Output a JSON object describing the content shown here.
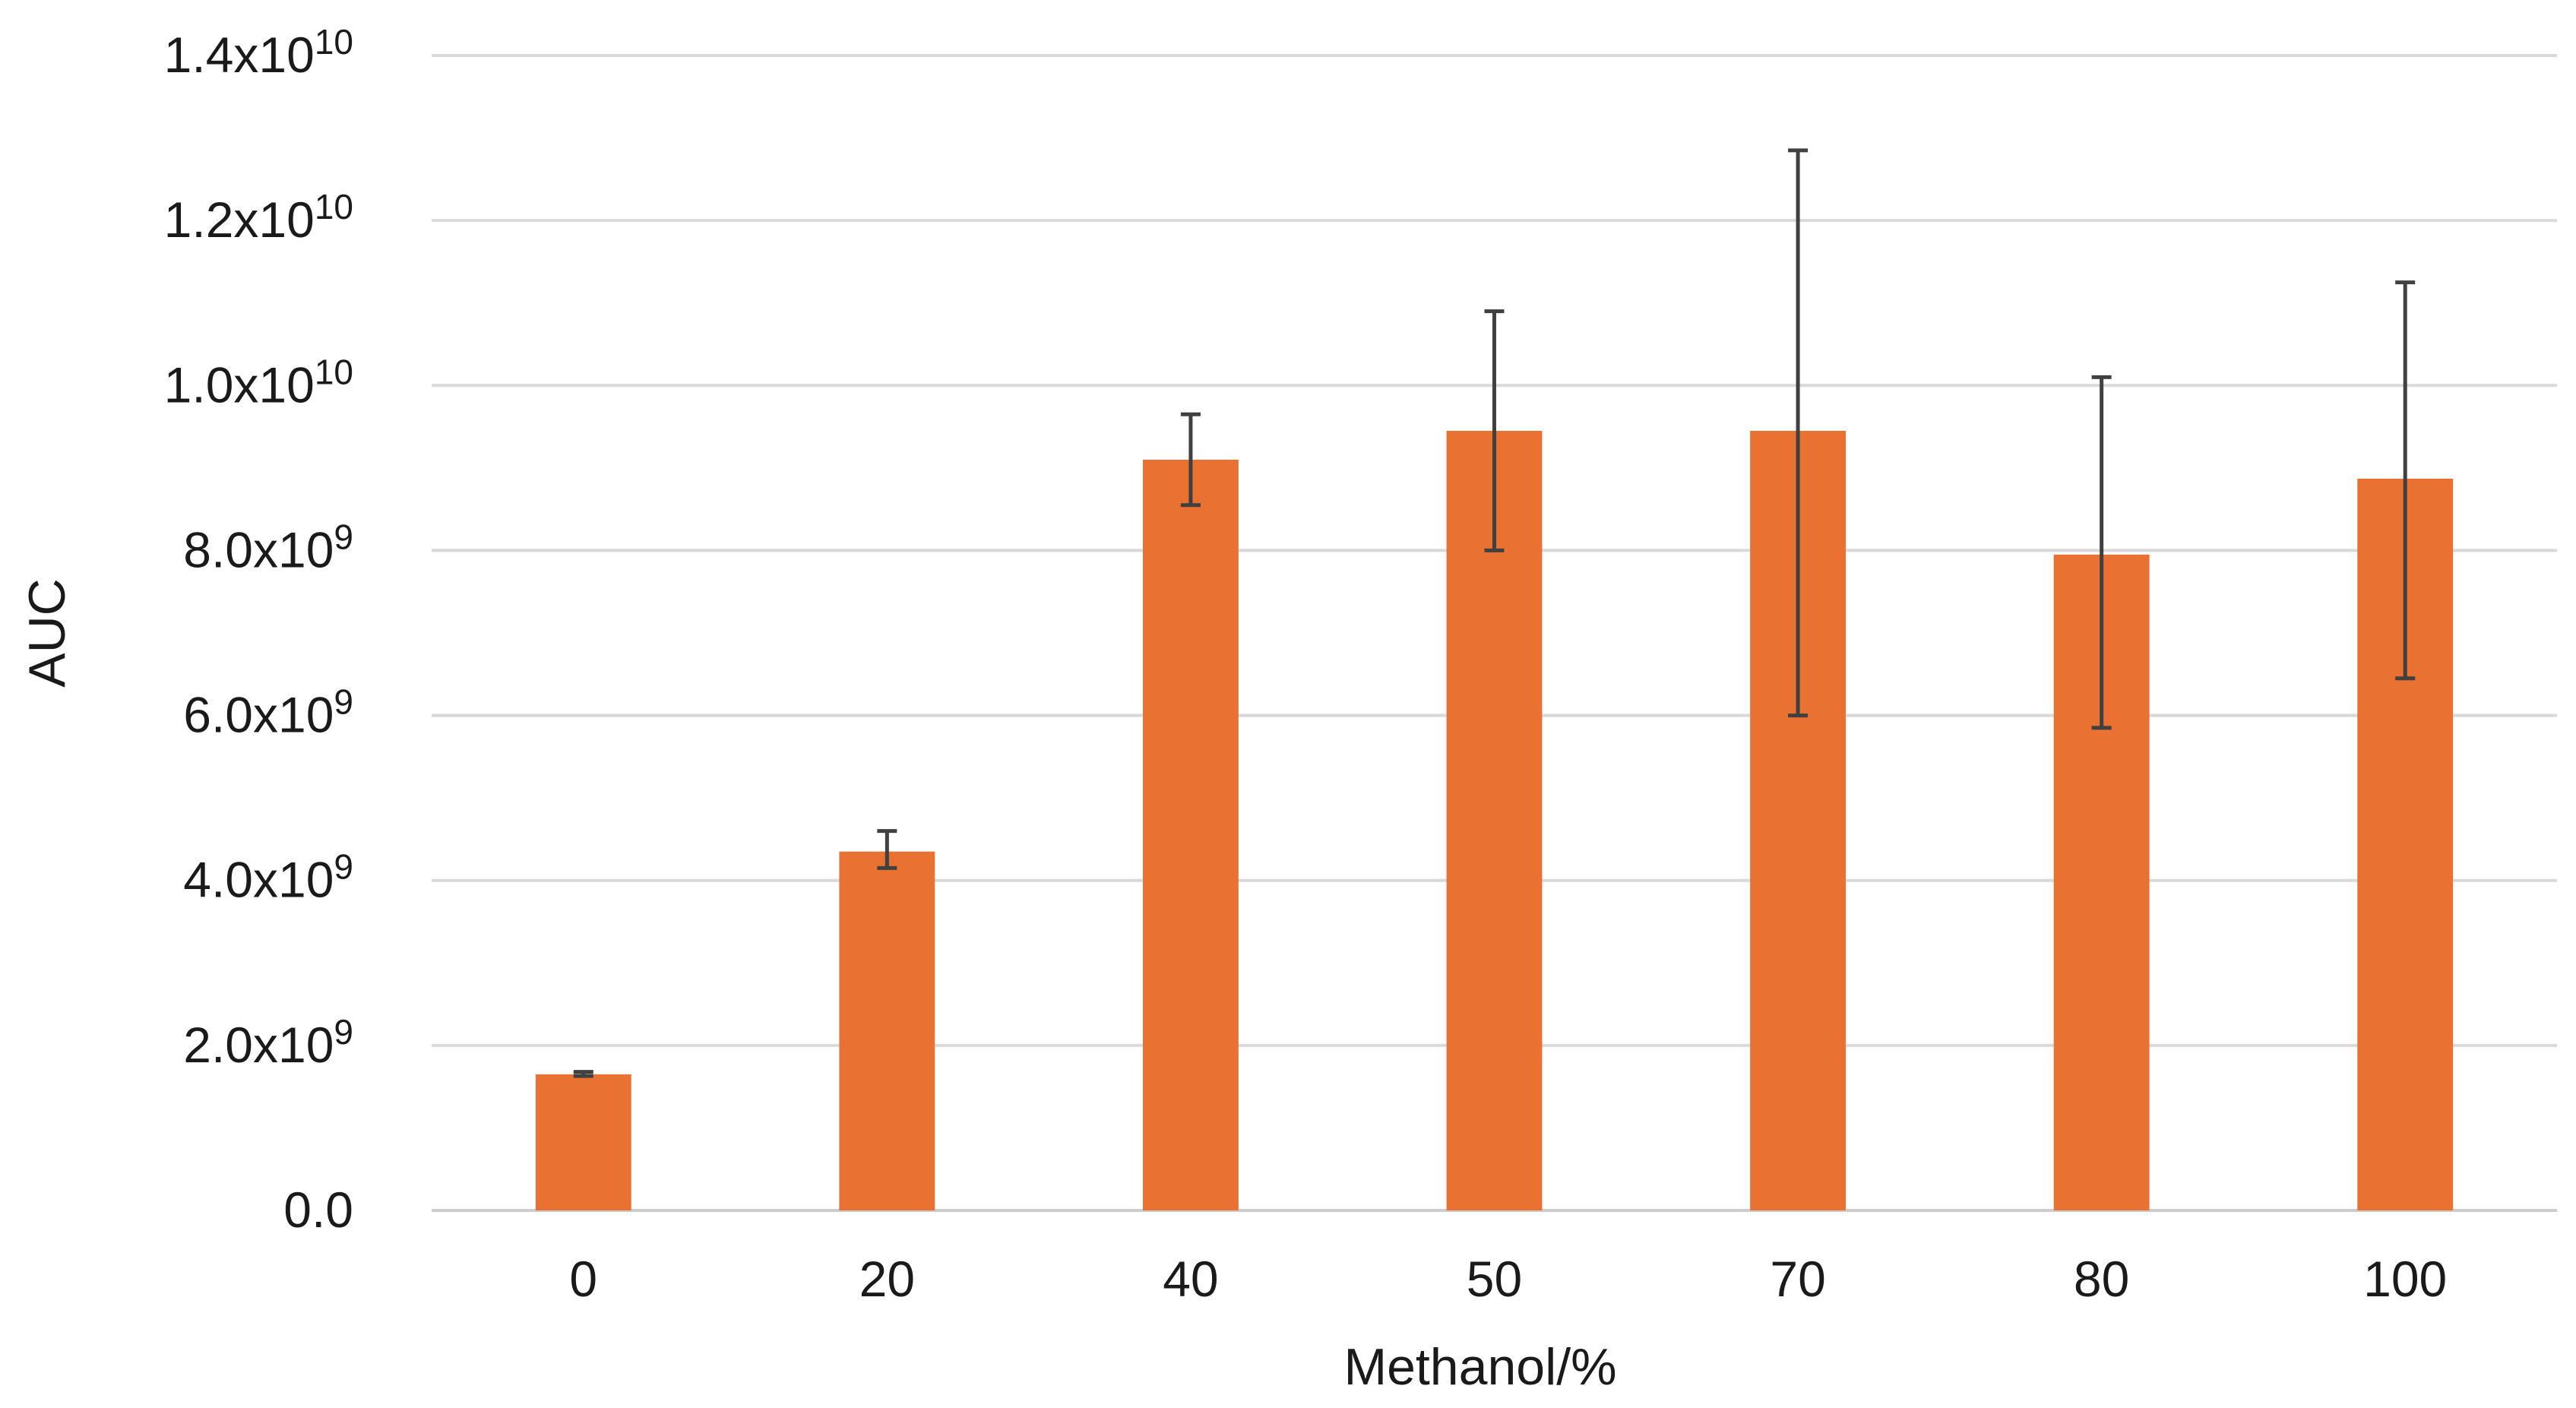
{
  "chart_data": {
    "type": "bar",
    "title": "",
    "xlabel": "Methanol/%",
    "ylabel": "AUC",
    "categories": [
      "0",
      "20",
      "40",
      "50",
      "70",
      "80",
      "100"
    ],
    "values": [
      1650000000.0,
      4350000000.0,
      9100000000.0,
      9450000000.0,
      9450000000.0,
      7950000000.0,
      8870000000.0
    ],
    "error_upper": [
      1680000000.0,
      4600000000.0,
      9650000000.0,
      10900000000.0,
      12850000000.0,
      10100000000.0,
      11250000000.0
    ],
    "error_lower": [
      1630000000.0,
      4150000000.0,
      8550000000.0,
      8000000000.0,
      6000000000.0,
      5850000000.0,
      6450000000.0
    ],
    "ylim": [
      0,
      14000000000
    ],
    "yticks": [
      {
        "base": "0.0",
        "exp": ""
      },
      {
        "base": "2.0x10",
        "exp": "9"
      },
      {
        "base": "4.0x10",
        "exp": "9"
      },
      {
        "base": "6.0x10",
        "exp": "9"
      },
      {
        "base": "8.0x10",
        "exp": "9"
      },
      {
        "base": "1.0x10",
        "exp": "10"
      },
      {
        "base": "1.2x10",
        "exp": "10"
      },
      {
        "base": "1.4x10",
        "exp": "10"
      }
    ],
    "grid": true,
    "legend": "none",
    "colors": {
      "bar": "#e97132",
      "error_bar": "#404040",
      "grid": "#d9d9d9"
    }
  }
}
